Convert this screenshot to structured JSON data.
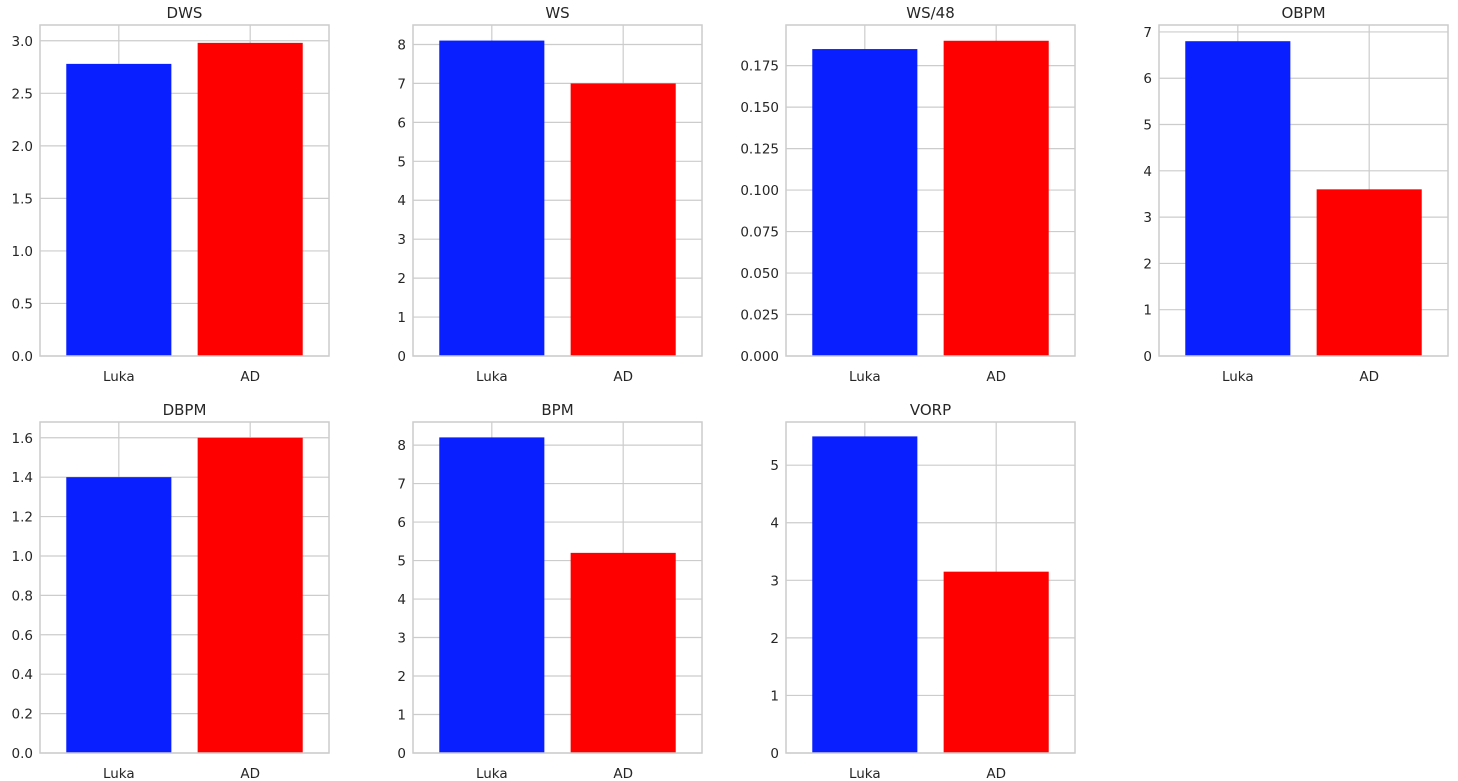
{
  "chart_data": [
    {
      "type": "bar",
      "title": "DWS",
      "categories": [
        "Luka",
        "AD"
      ],
      "values": [
        2.78,
        2.98
      ],
      "ylim": [
        0,
        3.15
      ],
      "yticks": [
        "0.0",
        "0.5",
        "1.0",
        "1.5",
        "2.0",
        "2.5",
        "3.0"
      ],
      "grid": true,
      "colors": [
        "#0a1fff",
        "#fe0000"
      ]
    },
    {
      "type": "bar",
      "title": "WS",
      "categories": [
        "Luka",
        "AD"
      ],
      "values": [
        8.1,
        7.0
      ],
      "ylim": [
        0,
        8.5
      ],
      "yticks": [
        "0",
        "1",
        "2",
        "3",
        "4",
        "5",
        "6",
        "7",
        "8"
      ],
      "grid": true,
      "colors": [
        "#0a1fff",
        "#fe0000"
      ]
    },
    {
      "type": "bar",
      "title": "WS/48",
      "categories": [
        "Luka",
        "AD"
      ],
      "values": [
        0.185,
        0.19
      ],
      "ylim": [
        0,
        0.1995
      ],
      "yticks": [
        "0.000",
        "0.025",
        "0.050",
        "0.075",
        "0.100",
        "0.125",
        "0.150",
        "0.175"
      ],
      "grid": true,
      "colors": [
        "#0a1fff",
        "#fe0000"
      ]
    },
    {
      "type": "bar",
      "title": "OBPM",
      "categories": [
        "Luka",
        "AD"
      ],
      "values": [
        6.8,
        3.6
      ],
      "ylim": [
        0,
        7.15
      ],
      "yticks": [
        "0",
        "1",
        "2",
        "3",
        "4",
        "5",
        "6",
        "7"
      ],
      "grid": true,
      "colors": [
        "#0a1fff",
        "#fe0000"
      ]
    },
    {
      "type": "bar",
      "title": "DBPM",
      "categories": [
        "Luka",
        "AD"
      ],
      "values": [
        1.4,
        1.6
      ],
      "ylim": [
        0,
        1.68
      ],
      "yticks": [
        "0.0",
        "0.2",
        "0.4",
        "0.6",
        "0.8",
        "1.0",
        "1.2",
        "1.4",
        "1.6"
      ],
      "grid": true,
      "colors": [
        "#0a1fff",
        "#fe0000"
      ]
    },
    {
      "type": "bar",
      "title": "BPM",
      "categories": [
        "Luka",
        "AD"
      ],
      "values": [
        8.2,
        5.2
      ],
      "ylim": [
        0,
        8.6
      ],
      "yticks": [
        "0",
        "1",
        "2",
        "3",
        "4",
        "5",
        "6",
        "7",
        "8"
      ],
      "grid": true,
      "colors": [
        "#0a1fff",
        "#fe0000"
      ]
    },
    {
      "type": "bar",
      "title": "VORP",
      "categories": [
        "Luka",
        "AD"
      ],
      "values": [
        5.5,
        3.15
      ],
      "ylim": [
        0,
        5.75
      ],
      "yticks": [
        "0",
        "1",
        "2",
        "3",
        "4",
        "5"
      ],
      "grid": true,
      "colors": [
        "#0a1fff",
        "#fe0000"
      ]
    }
  ]
}
